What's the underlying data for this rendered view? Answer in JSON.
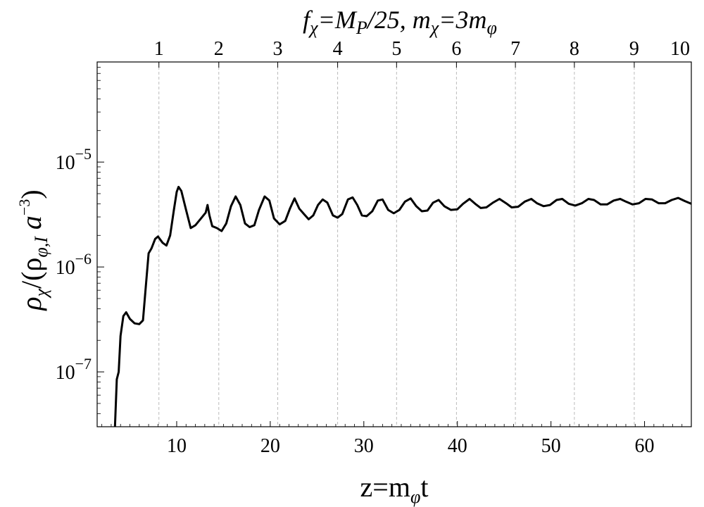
{
  "chart_data": {
    "type": "line",
    "title": "f_χ=M_P/25, m_χ=3m_φ",
    "title_parts": {
      "f": "f",
      "chi_sub": "χ",
      "eq_M": "=M",
      "P_sub": "P",
      "rest": "/25, m",
      "chi_sub2": "χ",
      "eq3m": "=3m",
      "phi_sub": "φ"
    },
    "xlabel": "z=m_φt",
    "xlabel_parts": {
      "z": "z=m",
      "phi_sub": "φ",
      "t": "t"
    },
    "ylabel": "ρ_χ/(ρ_{φ,I} a^{-3})",
    "ylabel_parts": {
      "rho1": "ρ",
      "chi_sub": "χ",
      "mid": "/(ρ",
      "phiI_sub": "φ,I",
      "a": " a",
      "exp": "−3",
      "close": ")"
    },
    "xlim": [
      1.5,
      65
    ],
    "ylim": [
      3e-08,
      9e-05
    ],
    "yscale": "log",
    "x_ticks": [
      10,
      20,
      30,
      40,
      50,
      60
    ],
    "y_ticks": [
      {
        "value": 1e-07,
        "base": "10",
        "exp": "−7"
      },
      {
        "value": 1e-06,
        "base": "10",
        "exp": "−6"
      },
      {
        "value": 1e-05,
        "base": "10",
        "exp": "−5"
      }
    ],
    "top_axis_ticks": [
      {
        "label": "1",
        "x": 8.1
      },
      {
        "label": "2",
        "x": 14.5
      },
      {
        "label": "3",
        "x": 20.8
      },
      {
        "label": "4",
        "x": 27.2
      },
      {
        "label": "5",
        "x": 33.5
      },
      {
        "label": "6",
        "x": 39.9
      },
      {
        "label": "7",
        "x": 46.2
      },
      {
        "label": "8",
        "x": 52.5
      },
      {
        "label": "9",
        "x": 58.9
      },
      {
        "label": "10",
        "x": 65.0
      }
    ],
    "vertical_gridlines": "dashed at top-axis ticks",
    "line_color": "#000000",
    "series": [
      {
        "points": [
          [
            3.4,
            3e-08
          ],
          [
            3.6,
            8.5e-08
          ],
          [
            3.8,
            1e-07
          ],
          [
            4.0,
            2.2e-07
          ],
          [
            4.3,
            3.4e-07
          ],
          [
            4.6,
            3.7e-07
          ],
          [
            5.0,
            3.2e-07
          ],
          [
            5.5,
            2.9e-07
          ],
          [
            6.0,
            2.85e-07
          ],
          [
            6.4,
            3.1e-07
          ],
          [
            6.7,
            6.5e-07
          ],
          [
            7.0,
            1.35e-06
          ],
          [
            7.3,
            1.5e-06
          ],
          [
            7.7,
            1.85e-06
          ],
          [
            8.0,
            1.95e-06
          ],
          [
            8.5,
            1.7e-06
          ],
          [
            8.9,
            1.6e-06
          ],
          [
            9.3,
            2e-06
          ],
          [
            9.7,
            3.5e-06
          ],
          [
            10.0,
            5.2e-06
          ],
          [
            10.2,
            5.8e-06
          ],
          [
            10.5,
            5.3e-06
          ],
          [
            11.0,
            3.5e-06
          ],
          [
            11.5,
            2.35e-06
          ],
          [
            12.0,
            2.5e-06
          ],
          [
            12.6,
            2.9e-06
          ],
          [
            13.1,
            3.3e-06
          ],
          [
            13.3,
            3.9e-06
          ],
          [
            13.5,
            3.1e-06
          ],
          [
            13.8,
            2.45e-06
          ],
          [
            14.3,
            2.35e-06
          ],
          [
            14.8,
            2.2e-06
          ],
          [
            15.3,
            2.6e-06
          ],
          [
            15.8,
            3.8e-06
          ],
          [
            16.3,
            4.7e-06
          ],
          [
            16.8,
            3.9e-06
          ],
          [
            17.3,
            2.6e-06
          ],
          [
            17.8,
            2.4e-06
          ],
          [
            18.3,
            2.5e-06
          ],
          [
            18.8,
            3.5e-06
          ],
          [
            19.4,
            4.7e-06
          ],
          [
            19.9,
            4.3e-06
          ],
          [
            20.4,
            2.9e-06
          ],
          [
            21.0,
            2.55e-06
          ],
          [
            21.6,
            2.75e-06
          ],
          [
            22.1,
            3.6e-06
          ],
          [
            22.6,
            4.5e-06
          ],
          [
            23.1,
            3.6e-06
          ],
          [
            23.6,
            3.2e-06
          ],
          [
            24.1,
            2.85e-06
          ],
          [
            24.6,
            3.1e-06
          ],
          [
            25.1,
            3.9e-06
          ],
          [
            25.6,
            4.4e-06
          ],
          [
            26.1,
            4.1e-06
          ],
          [
            26.7,
            3.1e-06
          ],
          [
            27.2,
            2.95e-06
          ],
          [
            27.7,
            3.2e-06
          ],
          [
            28.3,
            4.4e-06
          ],
          [
            28.8,
            4.6e-06
          ],
          [
            29.3,
            3.9e-06
          ],
          [
            29.8,
            3.1e-06
          ],
          [
            30.3,
            3.05e-06
          ],
          [
            30.9,
            3.4e-06
          ],
          [
            31.5,
            4.3e-06
          ],
          [
            32.0,
            4.4e-06
          ],
          [
            32.6,
            3.5e-06
          ],
          [
            33.2,
            3.25e-06
          ],
          [
            33.8,
            3.5e-06
          ],
          [
            34.4,
            4.2e-06
          ],
          [
            35.0,
            4.5e-06
          ],
          [
            35.6,
            3.8e-06
          ],
          [
            36.2,
            3.4e-06
          ],
          [
            36.8,
            3.45e-06
          ],
          [
            37.4,
            4.1e-06
          ],
          [
            38.0,
            4.35e-06
          ],
          [
            38.6,
            3.8e-06
          ],
          [
            39.3,
            3.5e-06
          ],
          [
            40.0,
            3.55e-06
          ],
          [
            40.6,
            4e-06
          ],
          [
            41.3,
            4.45e-06
          ],
          [
            41.9,
            4e-06
          ],
          [
            42.5,
            3.65e-06
          ],
          [
            43.1,
            3.7e-06
          ],
          [
            43.8,
            4.1e-06
          ],
          [
            44.5,
            4.45e-06
          ],
          [
            45.2,
            4.05e-06
          ],
          [
            45.8,
            3.7e-06
          ],
          [
            46.5,
            3.75e-06
          ],
          [
            47.2,
            4.2e-06
          ],
          [
            47.9,
            4.45e-06
          ],
          [
            48.5,
            4.05e-06
          ],
          [
            49.2,
            3.8e-06
          ],
          [
            49.9,
            3.9e-06
          ],
          [
            50.6,
            4.35e-06
          ],
          [
            51.2,
            4.45e-06
          ],
          [
            51.9,
            4e-06
          ],
          [
            52.6,
            3.85e-06
          ],
          [
            53.3,
            4.05e-06
          ],
          [
            54.0,
            4.45e-06
          ],
          [
            54.6,
            4.35e-06
          ],
          [
            55.3,
            3.95e-06
          ],
          [
            56.0,
            3.95e-06
          ],
          [
            56.7,
            4.3e-06
          ],
          [
            57.4,
            4.45e-06
          ],
          [
            58.0,
            4.2e-06
          ],
          [
            58.7,
            3.95e-06
          ],
          [
            59.4,
            4.05e-06
          ],
          [
            60.1,
            4.45e-06
          ],
          [
            60.8,
            4.4e-06
          ],
          [
            61.5,
            4.05e-06
          ],
          [
            62.2,
            4.05e-06
          ],
          [
            62.9,
            4.35e-06
          ],
          [
            63.6,
            4.55e-06
          ],
          [
            64.3,
            4.25e-06
          ],
          [
            65.0,
            4e-06
          ]
        ]
      }
    ]
  }
}
